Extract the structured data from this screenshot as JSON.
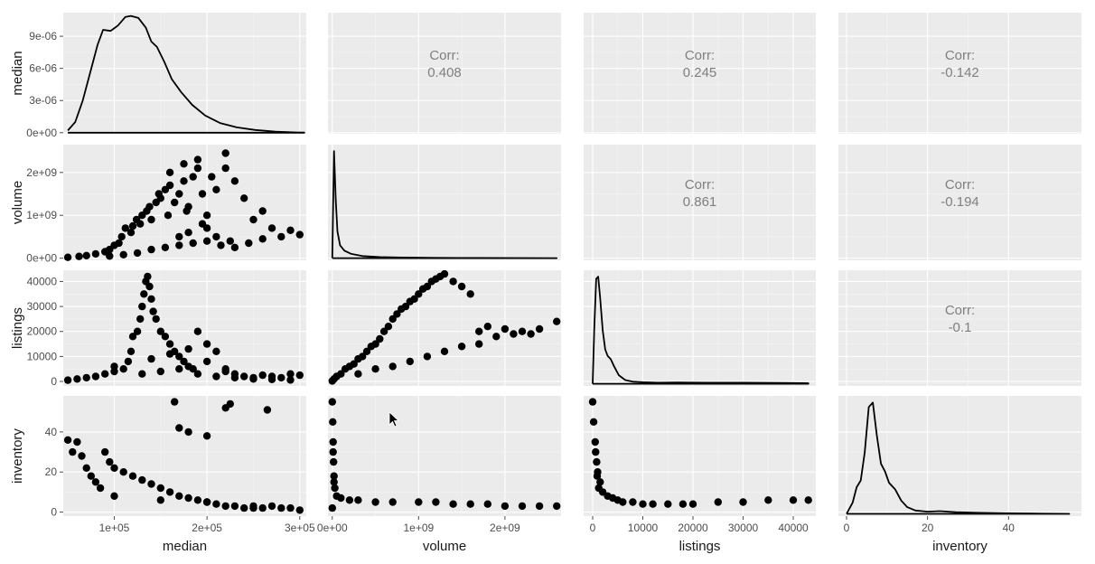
{
  "chart_data": {
    "type": "scatter",
    "layout": "pairs-matrix",
    "variables": [
      "median",
      "volume",
      "listings",
      "inventory"
    ],
    "axes": {
      "median": {
        "range": [
          45000,
          307000
        ],
        "ticks": [
          100000,
          200000,
          300000
        ],
        "tick_labels": [
          "1e+05",
          "2e+05",
          "3e+05"
        ]
      },
      "volume": {
        "range": [
          -50000000.0,
          2650000000.0
        ],
        "ticks": [
          0,
          1000000000.0,
          2000000000.0
        ],
        "tick_labels": [
          "0e+00",
          "1e+09",
          "2e+09"
        ]
      },
      "listings": {
        "range": [
          -1800,
          44500
        ],
        "ticks": [
          0,
          10000,
          20000,
          30000,
          40000
        ],
        "tick_labels": [
          "0",
          "10000",
          "20000",
          "30000",
          "40000"
        ]
      },
      "inventory": {
        "range": [
          -2,
          58
        ],
        "ticks": [
          0,
          20,
          40
        ],
        "tick_labels": [
          "0",
          "20",
          "40"
        ]
      }
    },
    "density_y_axis": {
      "range": [
        -1e-07,
        1.12e-05
      ],
      "ticks": [
        0,
        3e-06,
        6e-06,
        9e-06
      ],
      "tick_labels": [
        "0e+00",
        "3e-06",
        "6e-06",
        "9e-06"
      ]
    },
    "correlations": [
      {
        "row": "volume",
        "col": "median",
        "label": "Corr:",
        "value": "0.408"
      },
      {
        "row": "listings",
        "col": "median",
        "label": "Corr:",
        "value": "0.245"
      },
      {
        "row": "inventory",
        "col": "median",
        "label": "Corr:",
        "value": "-0.142"
      },
      {
        "row": "listings",
        "col": "volume",
        "label": "Corr:",
        "value": "0.861"
      },
      {
        "row": "inventory",
        "col": "volume",
        "label": "Corr:",
        "value": "-0.194"
      },
      {
        "row": "inventory",
        "col": "listings",
        "label": "Corr:",
        "value": "-0.1"
      }
    ],
    "densities": {
      "median": {
        "x": [
          50000,
          58000,
          66000,
          74000,
          82000,
          88000,
          96000,
          104000,
          112000,
          118000,
          126000,
          134000,
          140000,
          146000,
          154000,
          162000,
          172000,
          184000,
          198000,
          214000,
          232000,
          252000,
          274000,
          296000,
          305000
        ],
        "y": [
          2e-07,
          1e-06,
          3e-06,
          5.6e-06,
          8.2e-06,
          9.6e-06,
          9.5e-06,
          1e-05,
          1.08e-05,
          1.09e-05,
          1.07e-05,
          9.8e-06,
          8.5e-06,
          8e-06,
          6.6e-06,
          5e-06,
          3.8e-06,
          2.6e-06,
          1.6e-06,
          9e-07,
          5e-07,
          2.5e-07,
          1e-07,
          3e-08,
          1e-08
        ]
      },
      "volume": {
        "x": [
          0,
          20000000,
          40000000,
          60000000,
          90000000,
          140000000,
          220000000,
          350000000,
          550000000,
          800000000,
          1200000000,
          1700000000,
          2200000000,
          2600000000
        ],
        "y": [
          0.0,
          1.0,
          0.55,
          0.25,
          0.12,
          0.07,
          0.04,
          0.02,
          0.01,
          0.006,
          0.003,
          0.002,
          0.001,
          0.0
        ]
      },
      "listings": {
        "x": [
          0,
          300,
          700,
          1100,
          1500,
          2000,
          2500,
          3000,
          3600,
          4300,
          5200,
          6500,
          8000,
          10000,
          13000,
          17000,
          23000,
          30000,
          37000,
          43000
        ],
        "y": [
          0.0,
          0.5,
          0.98,
          1.0,
          0.8,
          0.5,
          0.32,
          0.26,
          0.23,
          0.16,
          0.08,
          0.035,
          0.02,
          0.015,
          0.01,
          0.012,
          0.01,
          0.01,
          0.008,
          0.005
        ]
      },
      "inventory": {
        "x": [
          0,
          1.5,
          2.5,
          3.5,
          4.5,
          5.5,
          6.5,
          7.5,
          8.5,
          9.5,
          10.5,
          12,
          13.5,
          15,
          17,
          20,
          23,
          27,
          32,
          40,
          48,
          55
        ],
        "y": [
          0.0,
          0.1,
          0.24,
          0.3,
          0.55,
          0.96,
          1.0,
          0.7,
          0.45,
          0.38,
          0.28,
          0.22,
          0.12,
          0.06,
          0.03,
          0.02,
          0.025,
          0.015,
          0.01,
          0.005,
          0.002,
          0.0
        ]
      }
    },
    "scatter": {
      "volume_vs_median": {
        "x": [
          50000,
          62000,
          70000,
          80000,
          90000,
          95000,
          100000,
          105000,
          108000,
          112000,
          118000,
          120000,
          124000,
          128000,
          130000,
          135000,
          138000,
          140000,
          145000,
          148000,
          150000,
          155000,
          158000,
          160000,
          165000,
          170000,
          175000,
          180000,
          185000,
          190000,
          195000,
          200000,
          210000,
          220000,
          230000,
          240000,
          250000,
          260000,
          270000,
          280000,
          290000,
          300000,
          95000,
          110000,
          125000,
          140000,
          155000,
          170000,
          185000,
          200000,
          215000,
          230000,
          245000,
          260000,
          160000,
          175000,
          190000,
          205000,
          220000,
          170000,
          180000,
          200000,
          210000,
          225000,
          178000,
          195000
        ],
        "y": [
          20000000,
          40000000,
          60000000,
          100000000,
          150000000,
          200000000,
          300000000,
          350000000,
          500000000,
          700000000,
          600000000,
          750000000,
          900000000,
          800000000,
          1000000000,
          1100000000,
          1200000000,
          900000000,
          1300000000,
          1500000000,
          1400000000,
          1600000000,
          1000000000,
          1700000000,
          1300000000,
          1500000000,
          1800000000,
          1200000000,
          1900000000,
          2100000000,
          1500000000,
          1000000000,
          1600000000,
          2450000000,
          1800000000,
          1400000000,
          900000000,
          1100000000,
          700000000,
          500000000,
          650000000,
          550000000,
          50000000,
          80000000,
          120000000,
          200000000,
          250000000,
          300000000,
          350000000,
          400000000,
          300000000,
          250000000,
          350000000,
          450000000,
          2000000000,
          2200000000,
          2300000000,
          1900000000,
          2100000000,
          500000000,
          600000000,
          700000000,
          500000000,
          400000000,
          1100000000,
          800000000
        ]
      },
      "listings_vs_median": {
        "x": [
          50000,
          60000,
          70000,
          80000,
          90000,
          100000,
          110000,
          115000,
          118000,
          120000,
          125000,
          128000,
          130000,
          132000,
          134000,
          136000,
          138000,
          140000,
          142000,
          145000,
          150000,
          155000,
          160000,
          165000,
          170000,
          175000,
          180000,
          185000,
          190000,
          200000,
          210000,
          220000,
          230000,
          240000,
          250000,
          260000,
          270000,
          280000,
          290000,
          300000,
          100000,
          140000,
          160000,
          180000,
          200000,
          220000,
          130000,
          150000,
          170000,
          190000,
          210000,
          230000,
          250000,
          270000,
          290000
        ],
        "y": [
          500,
          1000,
          1500,
          2000,
          3000,
          4000,
          5000,
          8000,
          12000,
          18000,
          20000,
          25000,
          30000,
          35000,
          40000,
          42000,
          38000,
          33000,
          28000,
          25000,
          20000,
          18000,
          15000,
          12000,
          10000,
          8000,
          6000,
          5000,
          20000,
          15000,
          12000,
          4000,
          3000,
          2000,
          1500,
          2500,
          2000,
          1500,
          3000,
          2500,
          6000,
          9000,
          11000,
          13000,
          8000,
          5000,
          3000,
          4000,
          5000,
          3000,
          2000,
          1500,
          1000,
          800,
          600
        ]
      },
      "listings_vs_volume": {
        "x": [
          0,
          20000000,
          50000000,
          100000000,
          150000000,
          200000000,
          250000000,
          300000000,
          350000000,
          400000000,
          450000000,
          500000000,
          550000000,
          600000000,
          650000000,
          700000000,
          750000000,
          800000000,
          850000000,
          900000000,
          950000000,
          1000000000,
          1050000000,
          1100000000,
          1150000000,
          1200000000,
          1250000000,
          1300000000,
          1400000000,
          1500000000,
          1600000000,
          1700000000,
          1800000000,
          1900000000,
          2000000000,
          2100000000,
          2200000000,
          2300000000,
          2400000000,
          2600000000,
          300000000,
          500000000,
          700000000,
          900000000,
          1100000000,
          1300000000,
          1500000000,
          1700000000
        ],
        "y": [
          200,
          1000,
          2000,
          3000,
          5000,
          6000,
          7000,
          9000,
          10000,
          12000,
          14000,
          15000,
          17000,
          20000,
          22000,
          25000,
          27000,
          29000,
          30000,
          32000,
          33000,
          35000,
          37000,
          38000,
          40000,
          41000,
          42000,
          43000,
          40000,
          38000,
          35000,
          20000,
          22000,
          18000,
          21000,
          19000,
          20000,
          19000,
          21000,
          24000,
          3000,
          5000,
          6000,
          8000,
          10000,
          12000,
          14000,
          15000
        ]
      },
      "inventory_vs_median": {
        "x": [
          50000,
          55000,
          60000,
          65000,
          70000,
          75000,
          80000,
          85000,
          90000,
          95000,
          100000,
          110000,
          120000,
          130000,
          140000,
          150000,
          160000,
          170000,
          180000,
          190000,
          200000,
          210000,
          220000,
          230000,
          240000,
          250000,
          260000,
          270000,
          280000,
          290000,
          300000,
          165000,
          170000,
          180000,
          200000,
          220000,
          225000,
          265000,
          100000,
          150000,
          200000,
          250000
        ],
        "y": [
          36,
          30,
          35,
          28,
          22,
          18,
          15,
          12,
          30,
          25,
          22,
          20,
          18,
          16,
          14,
          12,
          10,
          8,
          7,
          6,
          5,
          4,
          3,
          3,
          2,
          2,
          2,
          3,
          2,
          2,
          1,
          55,
          42,
          40,
          38,
          52,
          54,
          51,
          8,
          6,
          5,
          3
        ]
      },
      "inventory_vs_volume": {
        "x": [
          0,
          5000000,
          10000000,
          15000000,
          20000000,
          30000000,
          50000000,
          100000000,
          200000000,
          300000000,
          500000000,
          700000000,
          1000000000,
          1200000000,
          1400000000,
          1600000000,
          1800000000,
          2000000000,
          2200000000,
          2400000000,
          2600000000,
          0,
          10000000,
          20000000
        ],
        "y": [
          55,
          45,
          35,
          25,
          18,
          12,
          8,
          7,
          6,
          6,
          5,
          5,
          5,
          5,
          4,
          4,
          4,
          3,
          3,
          3,
          3,
          2,
          30,
          15
        ]
      },
      "inventory_vs_listings": {
        "x": [
          0,
          200,
          500,
          800,
          1000,
          1500,
          2000,
          3000,
          4000,
          5000,
          6000,
          8000,
          10000,
          12000,
          15000,
          18000,
          20000,
          25000,
          30000,
          35000,
          40000,
          43000,
          600,
          900,
          1200
        ],
        "y": [
          55,
          45,
          35,
          25,
          20,
          15,
          10,
          8,
          7,
          6,
          5,
          5,
          4,
          4,
          4,
          4,
          4,
          5,
          5,
          6,
          6,
          6,
          30,
          18,
          12
        ]
      }
    }
  }
}
